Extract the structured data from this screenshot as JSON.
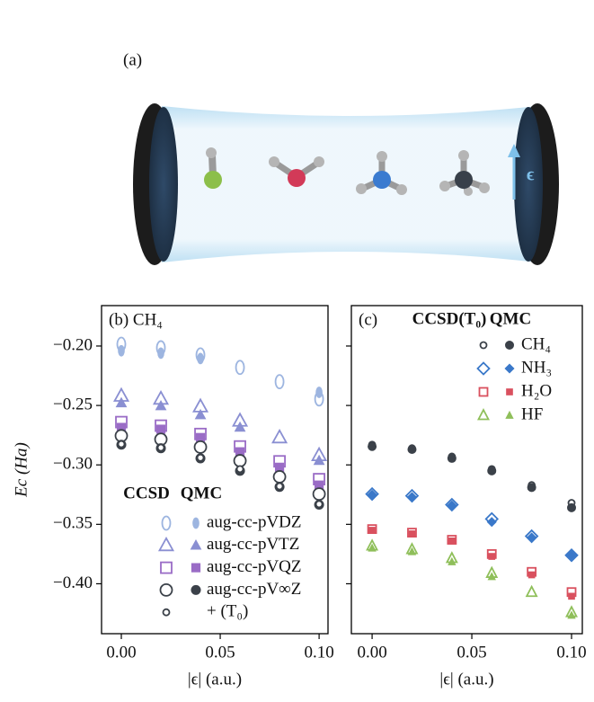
{
  "figure_label": "(a)",
  "epsilon_label": "ϵ",
  "chart_data": [
    {
      "type": "scatter",
      "title": "(b) CH₄",
      "xlabel": "|ϵ| (a.u.)",
      "ylabel": "Ec (Ha)",
      "x": [
        0,
        0.02,
        0.04,
        0.06,
        0.08,
        0.1
      ],
      "xlim": [
        -0.01,
        0.1045
      ],
      "ylim": [
        -0.442,
        -0.166
      ],
      "xticks": [
        {
          "value": 0,
          "label": "0.00"
        },
        {
          "value": 0.05,
          "label": "0.05"
        },
        {
          "value": 0.1,
          "label": "0.10"
        }
      ],
      "yticks": [
        {
          "value": -0.2,
          "label": "−0.20"
        },
        {
          "value": -0.25,
          "label": "−0.25"
        },
        {
          "value": -0.3,
          "label": "−0.30"
        },
        {
          "value": -0.35,
          "label": "−0.35"
        },
        {
          "value": -0.4,
          "label": "−0.40"
        }
      ],
      "ytick_labels": true,
      "legend_headers": [
        "CCSD",
        "QMC"
      ],
      "series": [
        {
          "name": "aug-cc-pVDZ",
          "color": "#9db5e0",
          "marker": "oval",
          "ccsd_values": [
            -0.1985,
            -0.2015,
            -0.2075,
            -0.218,
            -0.23,
            -0.2445
          ],
          "qmc_values": [
            -0.204,
            -0.206,
            -0.2105,
            null,
            null,
            -0.239
          ]
        },
        {
          "name": "aug-cc-pVTZ",
          "color": "#8a8fd2",
          "marker": "triangle",
          "ccsd_values": [
            -0.242,
            -0.2445,
            -0.251,
            -0.263,
            -0.277,
            -0.292
          ],
          "qmc_values": [
            -0.248,
            -0.2505,
            -0.258,
            -0.2685,
            null,
            -0.2965
          ]
        },
        {
          "name": "aug-cc-pVQZ",
          "color": "#9a6cc6",
          "marker": "square",
          "ccsd_values": [
            -0.264,
            -0.267,
            -0.274,
            -0.2845,
            -0.297,
            -0.312
          ],
          "qmc_values": [
            -0.2685,
            -0.27,
            -0.277,
            -0.289,
            -0.302,
            -0.317
          ]
        },
        {
          "name": "aug-cc-pV∞Z",
          "color": "#3b4149",
          "marker": "circle",
          "ccsd_values": [
            -0.2755,
            -0.2785,
            -0.285,
            -0.2965,
            -0.31,
            -0.3245
          ],
          "qmc_values": [
            -0.283,
            -0.286,
            -0.2945,
            -0.305,
            -0.3185,
            -0.3335
          ]
        },
        {
          "name": "+ (T₀)",
          "color": "#3b4149",
          "marker": "circle-small",
          "ccsd_values": [
            -0.2825,
            -0.2855,
            -0.294,
            -0.3035,
            -0.318,
            -0.333
          ]
        }
      ]
    },
    {
      "type": "scatter",
      "title": "(c)",
      "xlabel": "|ϵ| (a.u.)",
      "x": [
        0,
        0.02,
        0.04,
        0.06,
        0.08,
        0.1
      ],
      "xlim": [
        -0.0104,
        0.1054
      ],
      "ylim": [
        -0.442,
        -0.166
      ],
      "xticks": [
        {
          "value": 0,
          "label": "0.00"
        },
        {
          "value": 0.05,
          "label": "0.05"
        },
        {
          "value": 0.1,
          "label": "0.10"
        }
      ],
      "yticks": [
        -0.2,
        -0.25,
        -0.3,
        -0.35,
        -0.4
      ],
      "ytick_labels": false,
      "legend_headers": [
        "CCSD(T₀)",
        "QMC"
      ],
      "series": [
        {
          "name": "CH₄",
          "color": "#3b4149",
          "marker": "circle-small",
          "ccsd_values": [
            -0.283,
            -0.286,
            -0.293,
            -0.3035,
            -0.317,
            -0.332
          ],
          "qmc_values": [
            -0.2845,
            -0.287,
            -0.2945,
            -0.305,
            -0.319,
            -0.336
          ]
        },
        {
          "name": "NH₃",
          "color": "#3a78c9",
          "marker": "diamond",
          "ccsd_values": [
            -0.3245,
            -0.326,
            -0.3335,
            -0.3455,
            -0.36,
            -0.376
          ],
          "qmc_values": [
            -0.325,
            -0.327,
            -0.334,
            -0.348,
            -0.361,
            -0.376
          ]
        },
        {
          "name": "H₂O",
          "color": "#d9505e",
          "marker": "square-small",
          "ccsd_values": [
            -0.354,
            -0.357,
            -0.363,
            -0.375,
            -0.39,
            -0.407
          ],
          "qmc_values": [
            -0.355,
            -0.358,
            -0.364,
            -0.377,
            -0.3925,
            -0.4105
          ]
        },
        {
          "name": "HF",
          "color": "#8fbf5a",
          "marker": "triangle-small",
          "ccsd_values": [
            -0.368,
            -0.371,
            -0.3785,
            -0.391,
            -0.407,
            -0.424
          ],
          "qmc_values": [
            -0.37,
            -0.373,
            -0.3815,
            -0.394,
            null,
            -0.4265
          ]
        }
      ]
    }
  ]
}
